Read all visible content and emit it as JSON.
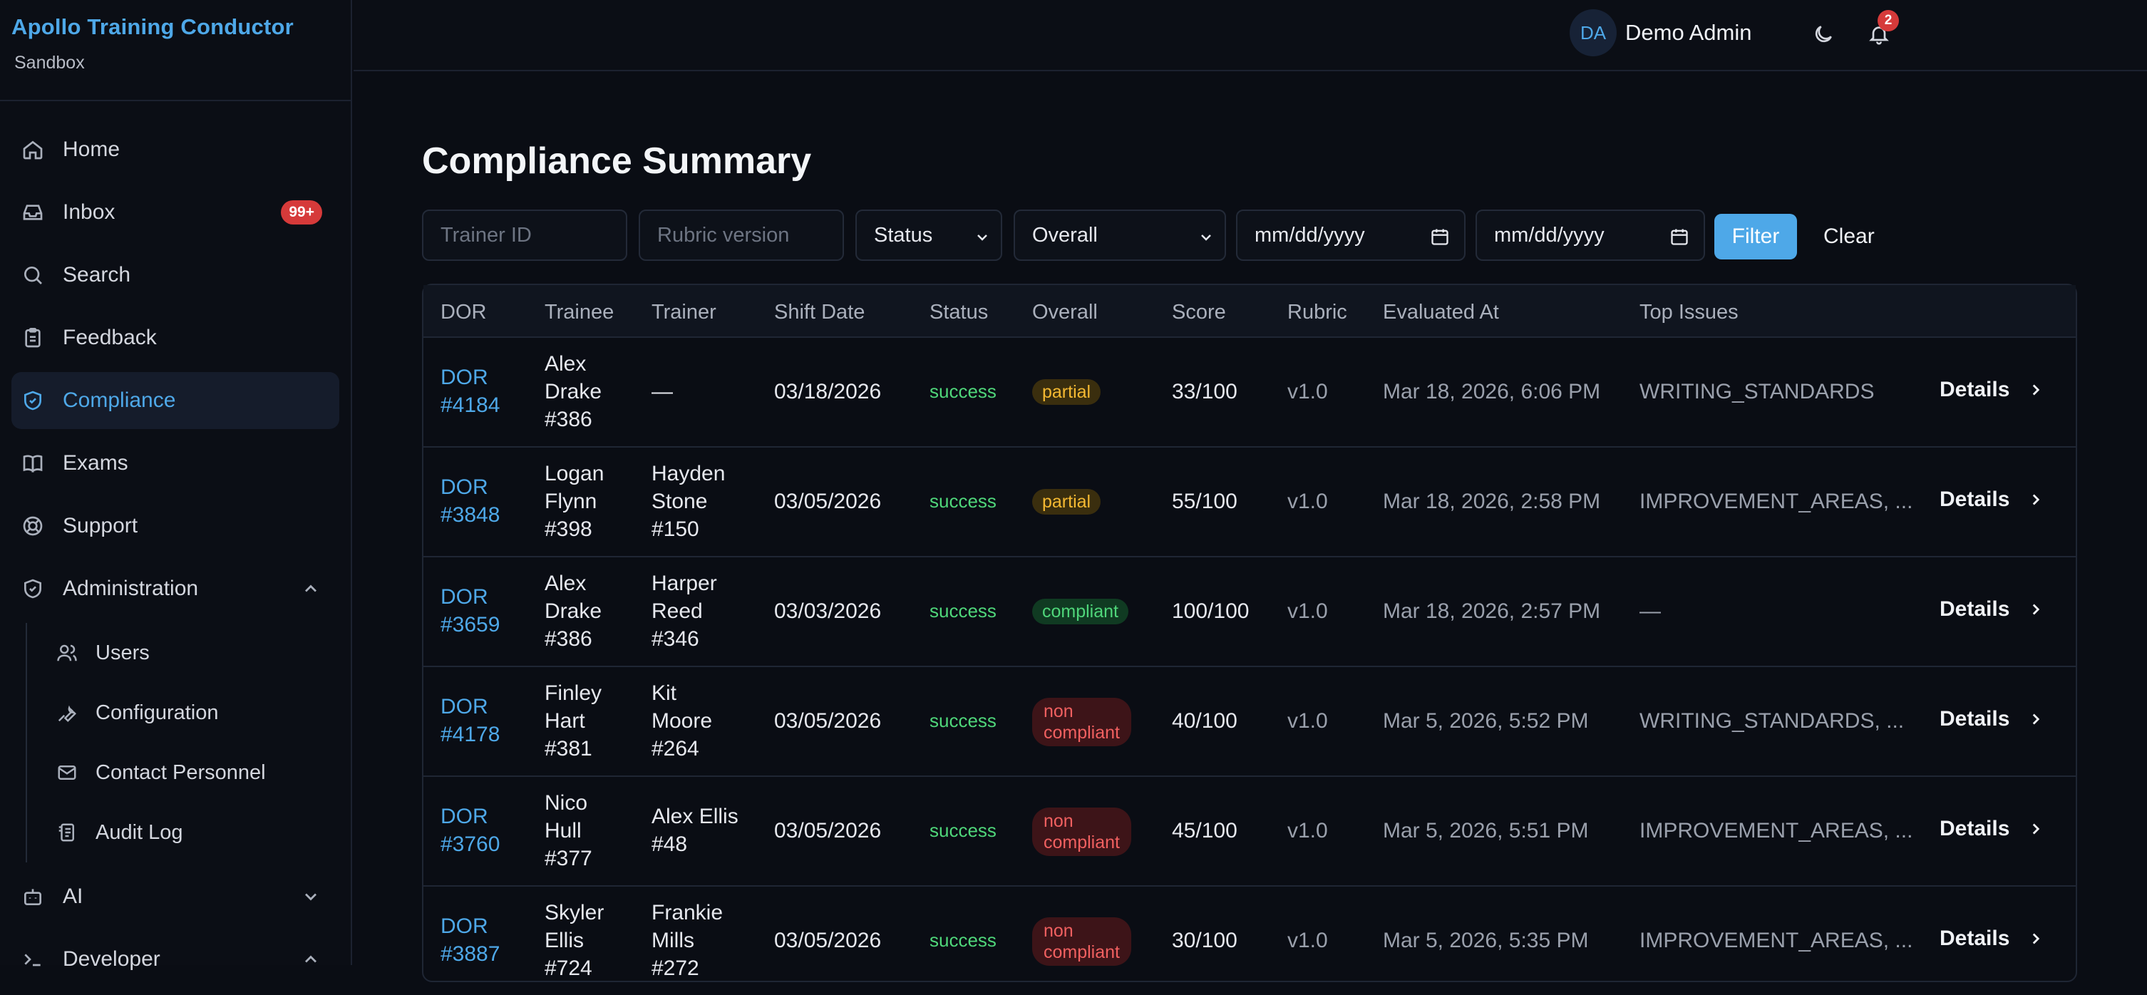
{
  "brand": {
    "title": "Apollo Training Conductor",
    "subtitle": "Sandbox"
  },
  "nav": {
    "home": "Home",
    "inbox": "Inbox",
    "inbox_badge": "99+",
    "search": "Search",
    "feedback": "Feedback",
    "compliance": "Compliance",
    "exams": "Exams",
    "support": "Support",
    "administration": "Administration",
    "admin_items": [
      "Users",
      "Configuration",
      "Contact Personnel",
      "Audit Log"
    ],
    "ai": "AI",
    "developer": "Developer"
  },
  "topbar": {
    "notification_count": "2",
    "avatar_initials": "DA",
    "user_name": "Demo Admin"
  },
  "page": {
    "title": "Compliance Summary"
  },
  "filters": {
    "trainer_placeholder": "Trainer ID",
    "rubric_placeholder": "Rubric version",
    "status_value": "Status",
    "overall_value": "Overall",
    "date_from": "mm/dd/yyyy",
    "date_to": "mm/dd/yyyy",
    "filter_label": "Filter",
    "clear_label": "Clear"
  },
  "table": {
    "headers": [
      "DOR",
      "Trainee",
      "Trainer",
      "Shift Date",
      "Status",
      "Overall",
      "Score",
      "Rubric",
      "Evaluated At",
      "Top Issues"
    ],
    "details_label": "Details",
    "rows": [
      {
        "dor": [
          "DOR",
          "#4184"
        ],
        "trainee": [
          "Alex",
          "Drake",
          "#386"
        ],
        "trainer": [
          "—"
        ],
        "shift_date": "03/18/2026",
        "status": "success",
        "overall": [
          "partial"
        ],
        "overall_kind": "partial",
        "score": "33/100",
        "rubric": "v1.0",
        "evaluated_at": "Mar 18, 2026, 6:06 PM",
        "top_issues": "WRITING_STANDARDS"
      },
      {
        "dor": [
          "DOR",
          "#3848"
        ],
        "trainee": [
          "Logan",
          "Flynn",
          "#398"
        ],
        "trainer": [
          "Hayden",
          "Stone",
          "#150"
        ],
        "shift_date": "03/05/2026",
        "status": "success",
        "overall": [
          "partial"
        ],
        "overall_kind": "partial",
        "score": "55/100",
        "rubric": "v1.0",
        "evaluated_at": "Mar 18, 2026, 2:58 PM",
        "top_issues": "IMPROVEMENT_AREAS, ..."
      },
      {
        "dor": [
          "DOR",
          "#3659"
        ],
        "trainee": [
          "Alex",
          "Drake",
          "#386"
        ],
        "trainer": [
          "Harper",
          "Reed",
          "#346"
        ],
        "shift_date": "03/03/2026",
        "status": "success",
        "overall": [
          "compliant"
        ],
        "overall_kind": "compliant",
        "score": "100/100",
        "rubric": "v1.0",
        "evaluated_at": "Mar 18, 2026, 2:57 PM",
        "top_issues": "—"
      },
      {
        "dor": [
          "DOR",
          "#4178"
        ],
        "trainee": [
          "Finley",
          "Hart",
          "#381"
        ],
        "trainer": [
          "Kit",
          "Moore",
          "#264"
        ],
        "shift_date": "03/05/2026",
        "status": "success",
        "overall": [
          "non",
          "compliant"
        ],
        "overall_kind": "non",
        "score": "40/100",
        "rubric": "v1.0",
        "evaluated_at": "Mar 5, 2026, 5:52 PM",
        "top_issues": "WRITING_STANDARDS, ..."
      },
      {
        "dor": [
          "DOR",
          "#3760"
        ],
        "trainee": [
          "Nico",
          "Hull",
          "#377"
        ],
        "trainer": [
          "Alex Ellis",
          "#48"
        ],
        "shift_date": "03/05/2026",
        "status": "success",
        "overall": [
          "non",
          "compliant"
        ],
        "overall_kind": "non",
        "score": "45/100",
        "rubric": "v1.0",
        "evaluated_at": "Mar 5, 2026, 5:51 PM",
        "top_issues": "IMPROVEMENT_AREAS, ..."
      },
      {
        "dor": [
          "DOR",
          "#3887"
        ],
        "trainee": [
          "Skyler",
          "Ellis",
          "#724"
        ],
        "trainer": [
          "Frankie",
          "Mills",
          "#272"
        ],
        "shift_date": "03/05/2026",
        "status": "success",
        "overall": [
          "non",
          "compliant"
        ],
        "overall_kind": "non",
        "score": "30/100",
        "rubric": "v1.0",
        "evaluated_at": "Mar 5, 2026, 5:35 PM",
        "top_issues": "IMPROVEMENT_AREAS, ..."
      }
    ]
  }
}
